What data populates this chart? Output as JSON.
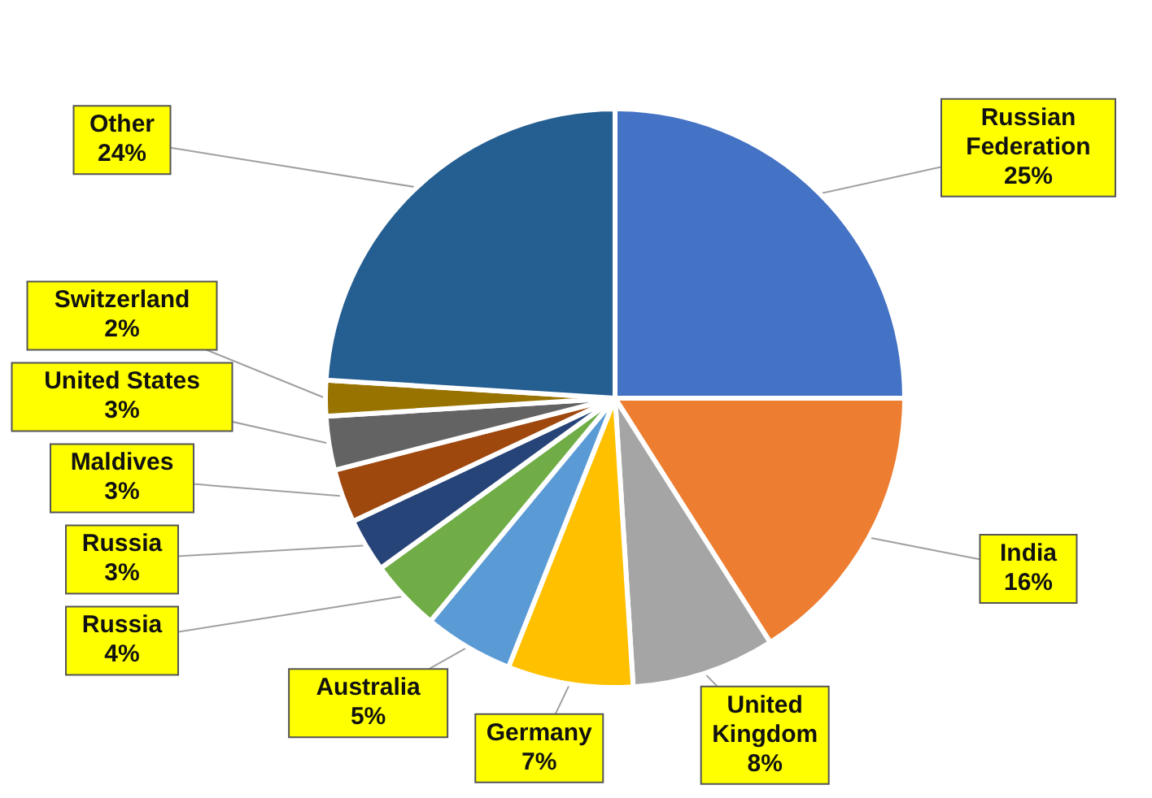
{
  "chart_data": {
    "type": "pie",
    "categories": [
      "Russian Federation",
      "India",
      "United Kingdom",
      "Germany",
      "Australia",
      "Russia",
      "Russia",
      "Maldives",
      "United States",
      "Switzerland",
      "Other"
    ],
    "values": [
      25,
      16,
      8,
      7,
      5,
      4,
      3,
      3,
      3,
      2,
      24
    ],
    "colors": [
      "#4472c4",
      "#ed7d31",
      "#a5a5a5",
      "#ffc000",
      "#5b9bd5",
      "#70ad47",
      "#264478",
      "#9e480e",
      "#636363",
      "#997300",
      "#255e91"
    ],
    "value_labels": [
      "25%",
      "16%",
      "8%",
      "7%",
      "5%",
      "4%",
      "3%",
      "3%",
      "3%",
      "2%",
      "24%"
    ]
  }
}
